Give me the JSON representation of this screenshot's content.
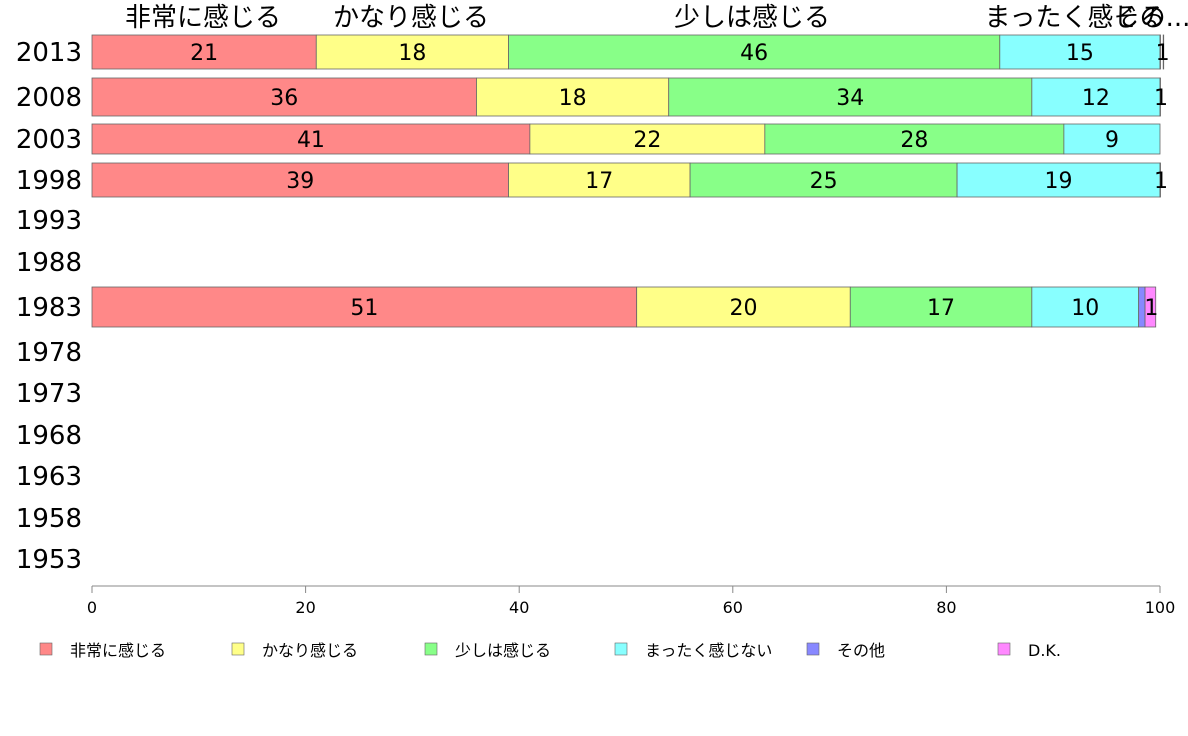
{
  "chart_data": {
    "type": "bar",
    "orientation": "horizontal",
    "stacked": true,
    "xlim": [
      0,
      100
    ],
    "xticks": [
      "0",
      "20",
      "40",
      "60",
      "80",
      "100"
    ],
    "categories": [
      "2013",
      "2008",
      "2003",
      "1998",
      "1993",
      "1988",
      "1983",
      "1978",
      "1973",
      "1968",
      "1963",
      "1958",
      "1953"
    ],
    "series": [
      {
        "name": "非常に感じる",
        "color": "#ff8888",
        "values": [
          21,
          36,
          41,
          39,
          null,
          null,
          51,
          null,
          null,
          null,
          null,
          null,
          null
        ]
      },
      {
        "name": "かなり感じる",
        "color": "#ffff88",
        "values": [
          18,
          18,
          22,
          17,
          null,
          null,
          20,
          null,
          null,
          null,
          null,
          null,
          null
        ]
      },
      {
        "name": "少しは感じる",
        "color": "#88ff88",
        "values": [
          46,
          34,
          28,
          25,
          null,
          null,
          17,
          null,
          null,
          null,
          null,
          null,
          null
        ]
      },
      {
        "name": "まったく感じない",
        "color": "#88ffff",
        "values": [
          15,
          12,
          9,
          19,
          null,
          null,
          10,
          null,
          null,
          null,
          null,
          null,
          null
        ]
      },
      {
        "name": "その他",
        "color": "#8888ff",
        "values": [
          0.3,
          0,
          0,
          0,
          null,
          null,
          0.6,
          null,
          null,
          null,
          null,
          null,
          null
        ]
      },
      {
        "name": "D.K.",
        "color": "#ff88ff",
        "values": [
          1,
          1,
          0,
          1,
          null,
          null,
          1,
          null,
          null,
          null,
          null,
          null,
          null
        ]
      }
    ],
    "data_labels": [
      [
        "21",
        "18",
        "46",
        "15",
        "",
        "1"
      ],
      [
        "36",
        "18",
        "34",
        "12",
        "",
        "1"
      ],
      [
        "41",
        "22",
        "28",
        "9",
        "",
        ""
      ],
      [
        "39",
        "17",
        "25",
        "19",
        "",
        "1"
      ],
      [],
      [],
      [
        "51",
        "20",
        "17",
        "10",
        "",
        "1"
      ],
      [],
      [],
      [],
      [],
      [],
      []
    ],
    "top_labels": [
      "非常に感じる",
      "かなり感じる",
      "少しは感じる",
      "まったく感じる",
      "その..."
    ],
    "legend_position": "bottom"
  }
}
